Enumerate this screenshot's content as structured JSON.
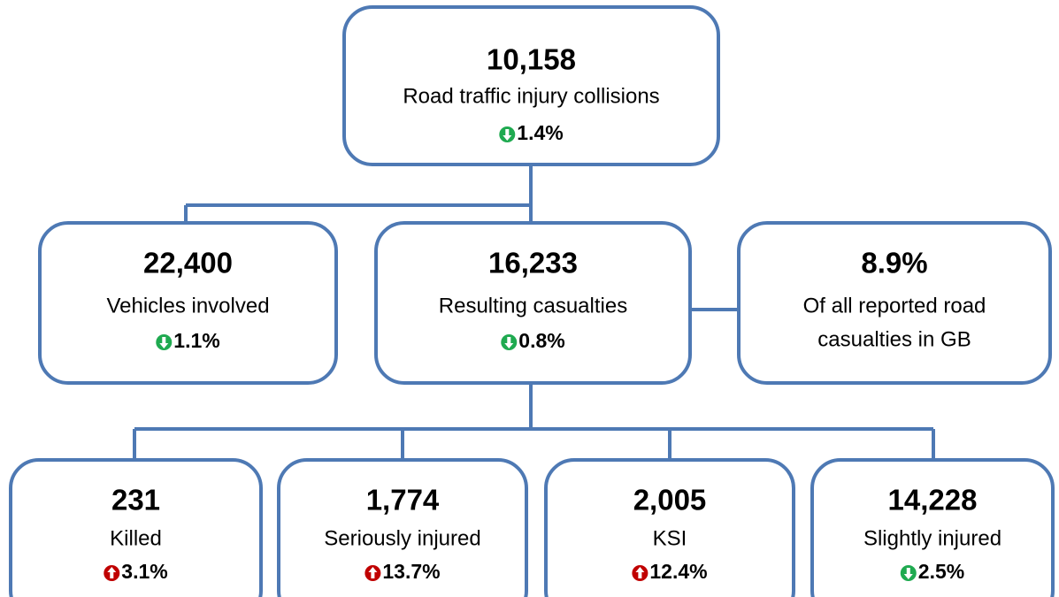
{
  "nodes": [
    {
      "value": "10,158",
      "label": [
        "Road traffic injury collisions"
      ],
      "change": {
        "text": "1.4%",
        "direction": "down",
        "color": "#1faa50"
      }
    },
    {
      "value": "22,400",
      "label": [
        "Vehicles involved"
      ],
      "change": {
        "text": "1.1%",
        "direction": "down",
        "color": "#1faa50"
      }
    },
    {
      "value": "16,233",
      "label": [
        "Resulting casualties"
      ],
      "change": {
        "text": "0.8%",
        "direction": "down",
        "color": "#1faa50"
      }
    },
    {
      "value": "8.9%",
      "label": [
        "Of all reported road",
        "casualties in GB"
      ]
    },
    {
      "value": "231",
      "label": [
        "Killed"
      ],
      "change": {
        "text": "3.1%",
        "direction": "up",
        "color": "#c00000"
      }
    },
    {
      "value": "1,774",
      "label": [
        "Seriously injured"
      ],
      "change": {
        "text": "13.7%",
        "direction": "up",
        "color": "#c00000"
      }
    },
    {
      "value": "2,005",
      "label": [
        "KSI"
      ],
      "change": {
        "text": "12.4%",
        "direction": "up",
        "color": "#c00000"
      }
    },
    {
      "value": "14,228",
      "label": [
        "Slightly injured"
      ],
      "change": {
        "text": "2.5%",
        "direction": "down",
        "color": "#1faa50"
      }
    }
  ]
}
